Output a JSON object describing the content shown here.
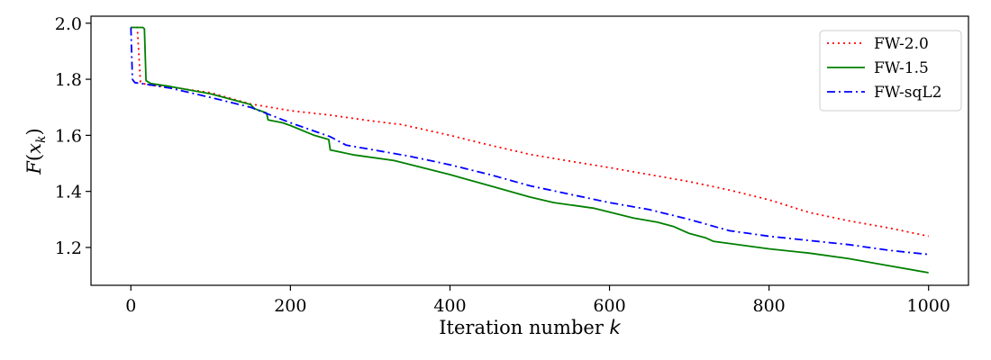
{
  "chart_data": {
    "type": "line",
    "title": "",
    "xlabel": "Iteration number k",
    "ylabel": "F(x_k)",
    "xlim": [
      -50,
      1050
    ],
    "ylim": [
      1.065,
      2.025
    ],
    "xticks": [
      0,
      200,
      400,
      600,
      800,
      1000
    ],
    "yticks": [
      1.2,
      1.4,
      1.6,
      1.8,
      2.0
    ],
    "xtick_labels": [
      "0",
      "200",
      "400",
      "600",
      "800",
      "1000"
    ],
    "ytick_labels": [
      "1.2",
      "1.4",
      "1.6",
      "1.8",
      "2.0"
    ],
    "grid": false,
    "legend_position": "top-right",
    "series": [
      {
        "name": "FW-2.0",
        "color": "#ff0000",
        "style": "dotted",
        "points": [
          [
            0,
            1.985
          ],
          [
            8,
            1.985
          ],
          [
            12,
            1.79
          ],
          [
            20,
            1.78
          ],
          [
            50,
            1.772
          ],
          [
            100,
            1.752
          ],
          [
            150,
            1.712
          ],
          [
            200,
            1.688
          ],
          [
            250,
            1.672
          ],
          [
            300,
            1.652
          ],
          [
            340,
            1.638
          ],
          [
            400,
            1.6
          ],
          [
            450,
            1.565
          ],
          [
            500,
            1.532
          ],
          [
            550,
            1.508
          ],
          [
            600,
            1.485
          ],
          [
            650,
            1.46
          ],
          [
            700,
            1.435
          ],
          [
            750,
            1.405
          ],
          [
            800,
            1.37
          ],
          [
            850,
            1.325
          ],
          [
            900,
            1.295
          ],
          [
            950,
            1.27
          ],
          [
            1000,
            1.24
          ]
        ]
      },
      {
        "name": "FW-1.5",
        "color": "#008000",
        "style": "solid",
        "points": [
          [
            0,
            1.985
          ],
          [
            15,
            1.985
          ],
          [
            17,
            1.98
          ],
          [
            19,
            1.795
          ],
          [
            25,
            1.785
          ],
          [
            50,
            1.774
          ],
          [
            100,
            1.748
          ],
          [
            150,
            1.71
          ],
          [
            155,
            1.695
          ],
          [
            170,
            1.68
          ],
          [
            172,
            1.655
          ],
          [
            190,
            1.645
          ],
          [
            200,
            1.635
          ],
          [
            230,
            1.6
          ],
          [
            248,
            1.585
          ],
          [
            250,
            1.548
          ],
          [
            280,
            1.53
          ],
          [
            330,
            1.51
          ],
          [
            400,
            1.46
          ],
          [
            450,
            1.42
          ],
          [
            500,
            1.38
          ],
          [
            530,
            1.36
          ],
          [
            580,
            1.34
          ],
          [
            630,
            1.305
          ],
          [
            660,
            1.29
          ],
          [
            680,
            1.275
          ],
          [
            700,
            1.25
          ],
          [
            720,
            1.235
          ],
          [
            730,
            1.222
          ],
          [
            800,
            1.195
          ],
          [
            850,
            1.18
          ],
          [
            900,
            1.16
          ],
          [
            950,
            1.135
          ],
          [
            1000,
            1.11
          ]
        ]
      },
      {
        "name": "FW-sqL2",
        "color": "#0000ff",
        "style": "dashdot",
        "points": [
          [
            0,
            1.985
          ],
          [
            2,
            1.8
          ],
          [
            5,
            1.788
          ],
          [
            20,
            1.782
          ],
          [
            50,
            1.768
          ],
          [
            100,
            1.735
          ],
          [
            150,
            1.7
          ],
          [
            200,
            1.645
          ],
          [
            210,
            1.635
          ],
          [
            250,
            1.595
          ],
          [
            270,
            1.565
          ],
          [
            300,
            1.55
          ],
          [
            350,
            1.525
          ],
          [
            400,
            1.495
          ],
          [
            450,
            1.46
          ],
          [
            500,
            1.42
          ],
          [
            550,
            1.39
          ],
          [
            600,
            1.36
          ],
          [
            650,
            1.335
          ],
          [
            700,
            1.3
          ],
          [
            750,
            1.26
          ],
          [
            800,
            1.24
          ],
          [
            850,
            1.225
          ],
          [
            900,
            1.21
          ],
          [
            950,
            1.19
          ],
          [
            1000,
            1.175
          ]
        ]
      }
    ]
  }
}
